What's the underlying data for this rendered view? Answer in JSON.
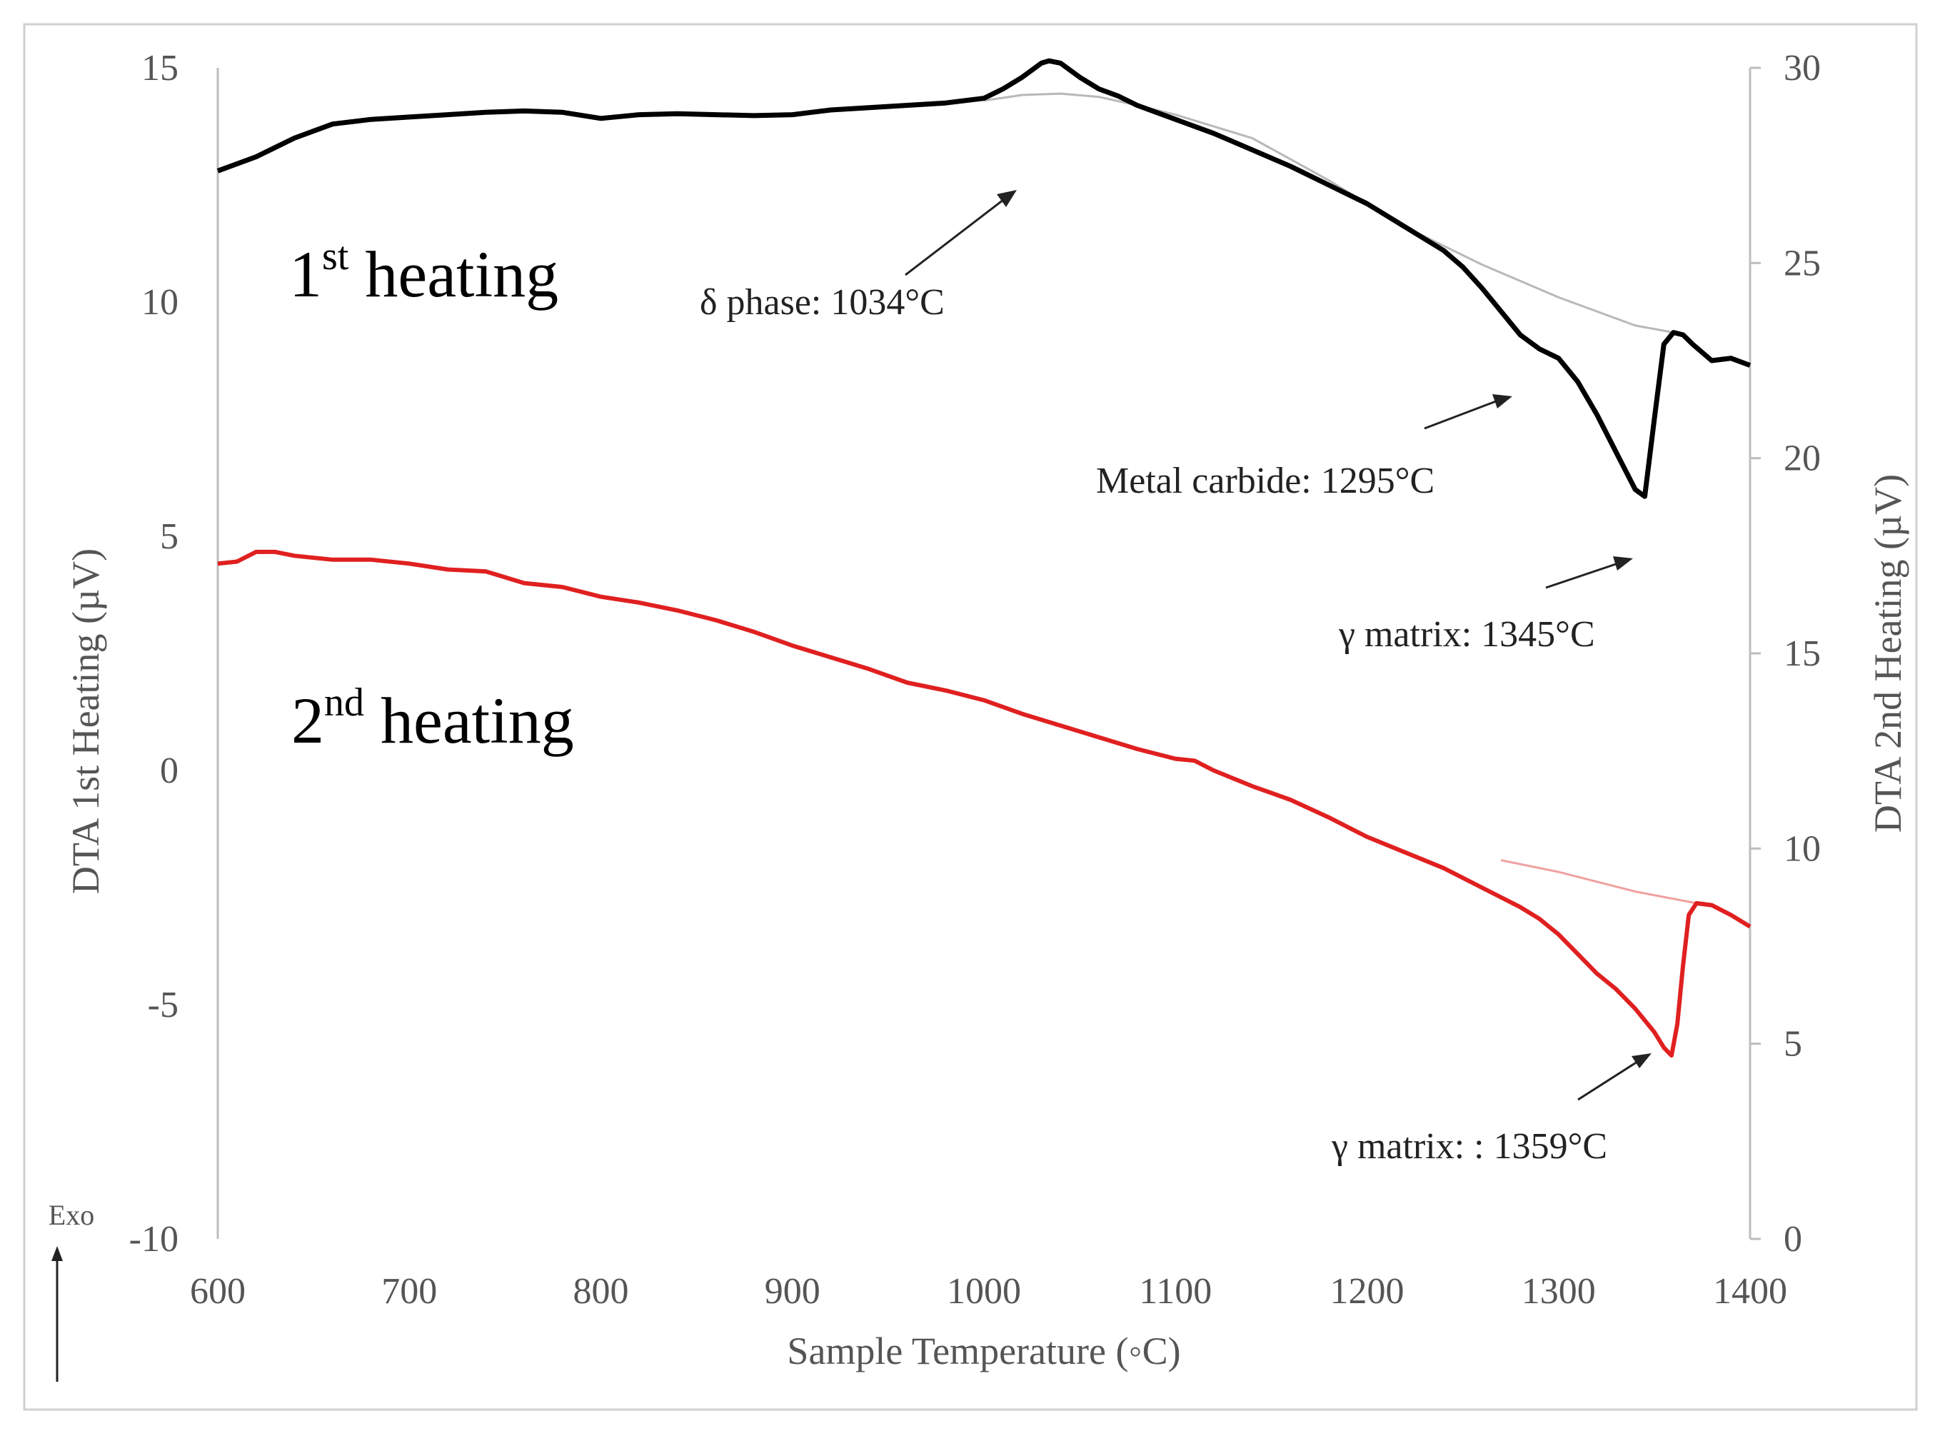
{
  "chart_data": {
    "type": "line",
    "title": "",
    "xlabel": "Sample Temperature (◦C)",
    "ylabel_left": "DTA 1st Heating  (µV)",
    "ylabel_right": "DTA 2nd Heating  (µV)",
    "xlim": [
      600,
      1400
    ],
    "ylim_left": [
      -10,
      15
    ],
    "ylim_right": [
      0,
      30
    ],
    "x_ticks": [
      600,
      700,
      800,
      900,
      1000,
      1100,
      1200,
      1300,
      1400
    ],
    "y_left_ticks": [
      -10,
      -5,
      0,
      5,
      10,
      15
    ],
    "y_right_ticks": [
      0,
      5,
      10,
      15,
      20,
      25,
      30
    ],
    "grid": false,
    "exo_label": "Exo",
    "series": [
      {
        "name": "1st heating",
        "axis": "left",
        "color": "#000000",
        "x": [
          600,
          620,
          640,
          660,
          680,
          700,
          720,
          740,
          760,
          780,
          800,
          820,
          840,
          860,
          880,
          900,
          920,
          940,
          960,
          980,
          1000,
          1010,
          1020,
          1030,
          1034,
          1040,
          1050,
          1060,
          1070,
          1080,
          1090,
          1100,
          1120,
          1140,
          1160,
          1180,
          1200,
          1220,
          1240,
          1250,
          1260,
          1270,
          1280,
          1290,
          1300,
          1310,
          1320,
          1330,
          1340,
          1345,
          1350,
          1355,
          1360,
          1365,
          1370,
          1380,
          1390,
          1400
        ],
        "y": [
          12.8,
          13.1,
          13.5,
          13.8,
          13.9,
          13.95,
          14.0,
          14.05,
          14.08,
          14.05,
          13.92,
          14.0,
          14.02,
          14.0,
          13.98,
          14.0,
          14.1,
          14.15,
          14.2,
          14.25,
          14.35,
          14.55,
          14.8,
          15.1,
          15.15,
          15.1,
          14.8,
          14.55,
          14.4,
          14.2,
          14.05,
          13.9,
          13.6,
          13.25,
          12.9,
          12.5,
          12.1,
          11.6,
          11.1,
          10.75,
          10.3,
          9.8,
          9.3,
          9.0,
          8.8,
          8.3,
          7.6,
          6.8,
          6.0,
          5.85,
          7.5,
          9.1,
          9.35,
          9.3,
          9.1,
          8.75,
          8.8,
          8.65
        ]
      },
      {
        "name": "1st heating baseline",
        "axis": "left",
        "color": "#b8b8b8",
        "x": [
          1000,
          1020,
          1040,
          1060,
          1080,
          1100,
          1140,
          1180,
          1220,
          1260,
          1300,
          1340,
          1360
        ],
        "y": [
          14.3,
          14.42,
          14.45,
          14.38,
          14.2,
          14.0,
          13.5,
          12.6,
          11.6,
          10.8,
          10.1,
          9.5,
          9.35
        ]
      },
      {
        "name": "2nd heating",
        "axis": "right",
        "color": "#e02020",
        "x": [
          600,
          610,
          620,
          630,
          640,
          660,
          680,
          700,
          720,
          740,
          760,
          780,
          800,
          820,
          840,
          860,
          880,
          900,
          920,
          940,
          960,
          980,
          1000,
          1020,
          1040,
          1060,
          1080,
          1100,
          1110,
          1120,
          1140,
          1160,
          1180,
          1200,
          1220,
          1240,
          1260,
          1280,
          1290,
          1300,
          1310,
          1320,
          1330,
          1340,
          1350,
          1355,
          1359,
          1362,
          1365,
          1368,
          1372,
          1380,
          1390,
          1400
        ],
        "y": [
          17.3,
          17.35,
          17.6,
          17.6,
          17.5,
          17.4,
          17.4,
          17.3,
          17.15,
          17.1,
          16.8,
          16.7,
          16.45,
          16.3,
          16.1,
          15.85,
          15.55,
          15.2,
          14.9,
          14.6,
          14.25,
          14.05,
          13.8,
          13.45,
          13.15,
          12.85,
          12.55,
          12.3,
          12.25,
          12.0,
          11.6,
          11.25,
          10.8,
          10.3,
          9.9,
          9.5,
          9.0,
          8.5,
          8.2,
          7.8,
          7.3,
          6.8,
          6.4,
          5.9,
          5.3,
          4.9,
          4.7,
          5.5,
          7.0,
          8.3,
          8.6,
          8.55,
          8.3,
          8.0
        ]
      },
      {
        "name": "2nd heating baseline",
        "axis": "right",
        "color": "#f0a0a0",
        "x": [
          1270,
          1300,
          1340,
          1372
        ],
        "y": [
          9.7,
          9.4,
          8.9,
          8.6
        ]
      }
    ],
    "annotations": [
      {
        "label": "δ phase: 1034°C",
        "series": "1st heating",
        "x": 1034
      },
      {
        "label": "Metal carbide: 1295°C",
        "series": "1st heating",
        "x": 1295
      },
      {
        "label": "γ matrix: 1345°C",
        "series": "1st heating",
        "x": 1345
      },
      {
        "label": "γ matrix: : 1359°C",
        "series": "2nd heating",
        "x": 1359
      }
    ],
    "series_labels": [
      {
        "base": "1",
        "sup": "st",
        "text": " heating"
      },
      {
        "base": "2",
        "sup": "nd",
        "text": " heating"
      }
    ]
  }
}
